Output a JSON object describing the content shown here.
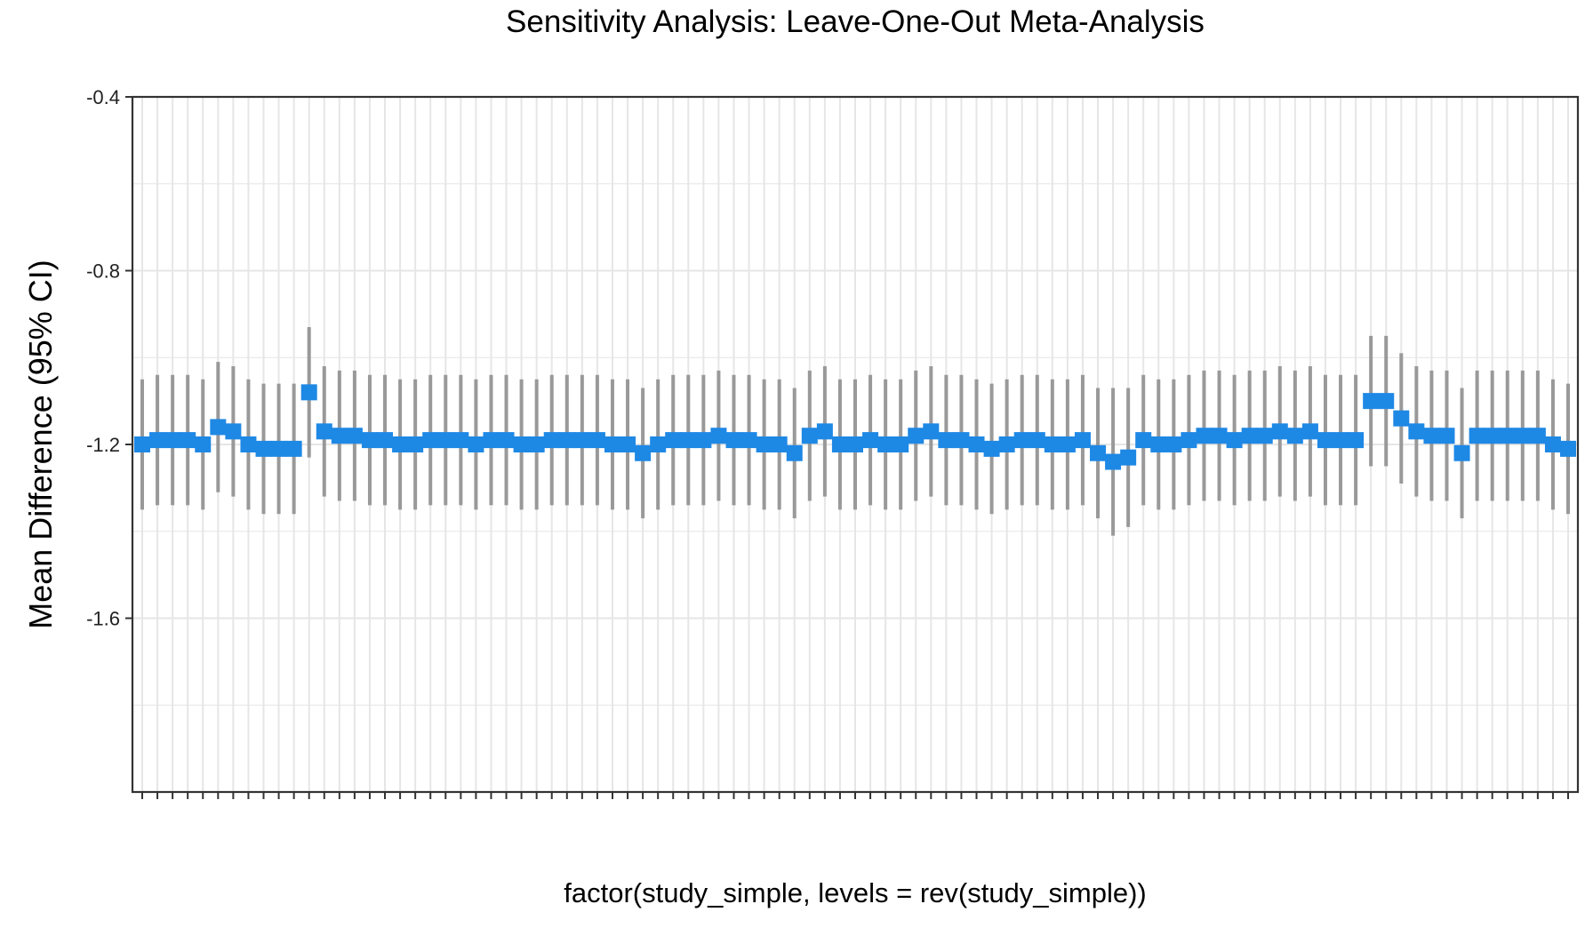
{
  "chart_data": {
    "type": "scatter",
    "title": "Sensitivity Analysis: Leave-One-Out Meta-Analysis",
    "xlabel": "factor(study_simple, levels = rev(study_simple))",
    "ylabel": "Mean Difference (95% CI)",
    "ylim": [
      -2.0,
      -0.4
    ],
    "y_ticks": [
      -0.4,
      -0.8,
      -1.2,
      -1.6
    ],
    "y_tick_labels": [
      "-0.4",
      "-0.8",
      "-1.2",
      "-1.6"
    ],
    "x_tick_labels_visible": false,
    "grid": true,
    "colors": {
      "point": "#1E88E5",
      "errorbar": "#999999",
      "grid": "#E6E6E6",
      "panel_border": "#333333"
    },
    "series": [
      {
        "estimate": [
          -1.2,
          -1.19,
          -1.19,
          -1.19,
          -1.2,
          -1.16,
          -1.17,
          -1.2,
          -1.21,
          -1.21,
          -1.21,
          -1.08,
          -1.17,
          -1.18,
          -1.18,
          -1.19,
          -1.19,
          -1.2,
          -1.2,
          -1.19,
          -1.19,
          -1.19,
          -1.2,
          -1.19,
          -1.19,
          -1.2,
          -1.2,
          -1.19,
          -1.19,
          -1.19,
          -1.19,
          -1.2,
          -1.2,
          -1.22,
          -1.2,
          -1.19,
          -1.19,
          -1.19,
          -1.18,
          -1.19,
          -1.19,
          -1.2,
          -1.2,
          -1.22,
          -1.18,
          -1.17,
          -1.2,
          -1.2,
          -1.19,
          -1.2,
          -1.2,
          -1.18,
          -1.17,
          -1.19,
          -1.19,
          -1.2,
          -1.21,
          -1.2,
          -1.19,
          -1.19,
          -1.2,
          -1.2,
          -1.19,
          -1.22,
          -1.24,
          -1.23,
          -1.19,
          -1.2,
          -1.2,
          -1.19,
          -1.18,
          -1.18,
          -1.19,
          -1.18,
          -1.18,
          -1.17,
          -1.18,
          -1.17,
          -1.19,
          -1.19,
          -1.19,
          -1.1,
          -1.1,
          -1.14,
          -1.17,
          -1.18,
          -1.18,
          -1.22,
          -1.18,
          -1.18,
          -1.18,
          -1.18,
          -1.18,
          -1.2,
          -1.21
        ],
        "ci_lower": [
          -1.35,
          -1.34,
          -1.34,
          -1.34,
          -1.35,
          -1.31,
          -1.32,
          -1.35,
          -1.36,
          -1.36,
          -1.36,
          -1.23,
          -1.32,
          -1.33,
          -1.33,
          -1.34,
          -1.34,
          -1.35,
          -1.35,
          -1.34,
          -1.34,
          -1.34,
          -1.35,
          -1.34,
          -1.34,
          -1.35,
          -1.35,
          -1.34,
          -1.34,
          -1.34,
          -1.34,
          -1.35,
          -1.35,
          -1.37,
          -1.35,
          -1.34,
          -1.34,
          -1.34,
          -1.33,
          -1.34,
          -1.34,
          -1.35,
          -1.35,
          -1.37,
          -1.33,
          -1.32,
          -1.35,
          -1.35,
          -1.34,
          -1.35,
          -1.35,
          -1.33,
          -1.32,
          -1.34,
          -1.34,
          -1.35,
          -1.36,
          -1.35,
          -1.34,
          -1.34,
          -1.35,
          -1.35,
          -1.34,
          -1.37,
          -1.41,
          -1.39,
          -1.34,
          -1.35,
          -1.35,
          -1.34,
          -1.33,
          -1.33,
          -1.34,
          -1.33,
          -1.33,
          -1.32,
          -1.33,
          -1.32,
          -1.34,
          -1.34,
          -1.34,
          -1.25,
          -1.25,
          -1.29,
          -1.32,
          -1.33,
          -1.33,
          -1.37,
          -1.33,
          -1.33,
          -1.33,
          -1.33,
          -1.33,
          -1.35,
          -1.36
        ],
        "ci_upper": [
          -1.05,
          -1.04,
          -1.04,
          -1.04,
          -1.05,
          -1.01,
          -1.02,
          -1.05,
          -1.06,
          -1.06,
          -1.06,
          -0.93,
          -1.02,
          -1.03,
          -1.03,
          -1.04,
          -1.04,
          -1.05,
          -1.05,
          -1.04,
          -1.04,
          -1.04,
          -1.05,
          -1.04,
          -1.04,
          -1.05,
          -1.05,
          -1.04,
          -1.04,
          -1.04,
          -1.04,
          -1.05,
          -1.05,
          -1.07,
          -1.05,
          -1.04,
          -1.04,
          -1.04,
          -1.03,
          -1.04,
          -1.04,
          -1.05,
          -1.05,
          -1.07,
          -1.03,
          -1.02,
          -1.05,
          -1.05,
          -1.04,
          -1.05,
          -1.05,
          -1.03,
          -1.02,
          -1.04,
          -1.04,
          -1.05,
          -1.06,
          -1.05,
          -1.04,
          -1.04,
          -1.05,
          -1.05,
          -1.04,
          -1.07,
          -1.07,
          -1.07,
          -1.04,
          -1.05,
          -1.05,
          -1.04,
          -1.03,
          -1.03,
          -1.04,
          -1.03,
          -1.03,
          -1.02,
          -1.03,
          -1.02,
          -1.04,
          -1.04,
          -1.04,
          -0.95,
          -0.95,
          -0.99,
          -1.02,
          -1.03,
          -1.03,
          -1.07,
          -1.03,
          -1.03,
          -1.03,
          -1.03,
          -1.03,
          -1.05,
          -1.06
        ]
      }
    ]
  }
}
